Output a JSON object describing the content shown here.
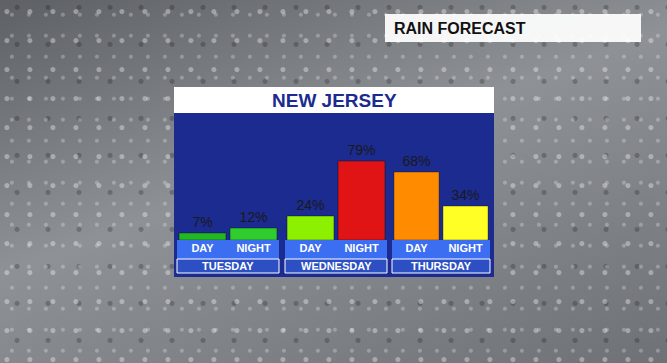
{
  "chart_data": {
    "type": "bar",
    "title": "NEW JERSEY",
    "subtitle": "RAIN FORECAST",
    "ylim": [
      0,
      123
    ],
    "data_labels": true,
    "tick_labels": "x",
    "groups": [
      {
        "name": "TUESDAY",
        "categories": [
          "DAY",
          "NIGHT"
        ],
        "values": [
          7,
          12
        ],
        "value_labels": [
          "7%",
          "12%"
        ],
        "colors": [
          "#22b822",
          "#2fcc2f"
        ]
      },
      {
        "name": "WEDNESDAY",
        "categories": [
          "DAY",
          "NIGHT"
        ],
        "values": [
          24,
          79
        ],
        "value_labels": [
          "24%",
          "79%"
        ],
        "colors": [
          "#8cf000",
          "#e01414"
        ]
      },
      {
        "name": "THURSDAY",
        "categories": [
          "DAY",
          "NIGHT"
        ],
        "values": [
          68,
          34
        ],
        "value_labels": [
          "68%",
          "34%"
        ],
        "colors": [
          "#ff8c00",
          "#ffff26"
        ]
      }
    ]
  }
}
